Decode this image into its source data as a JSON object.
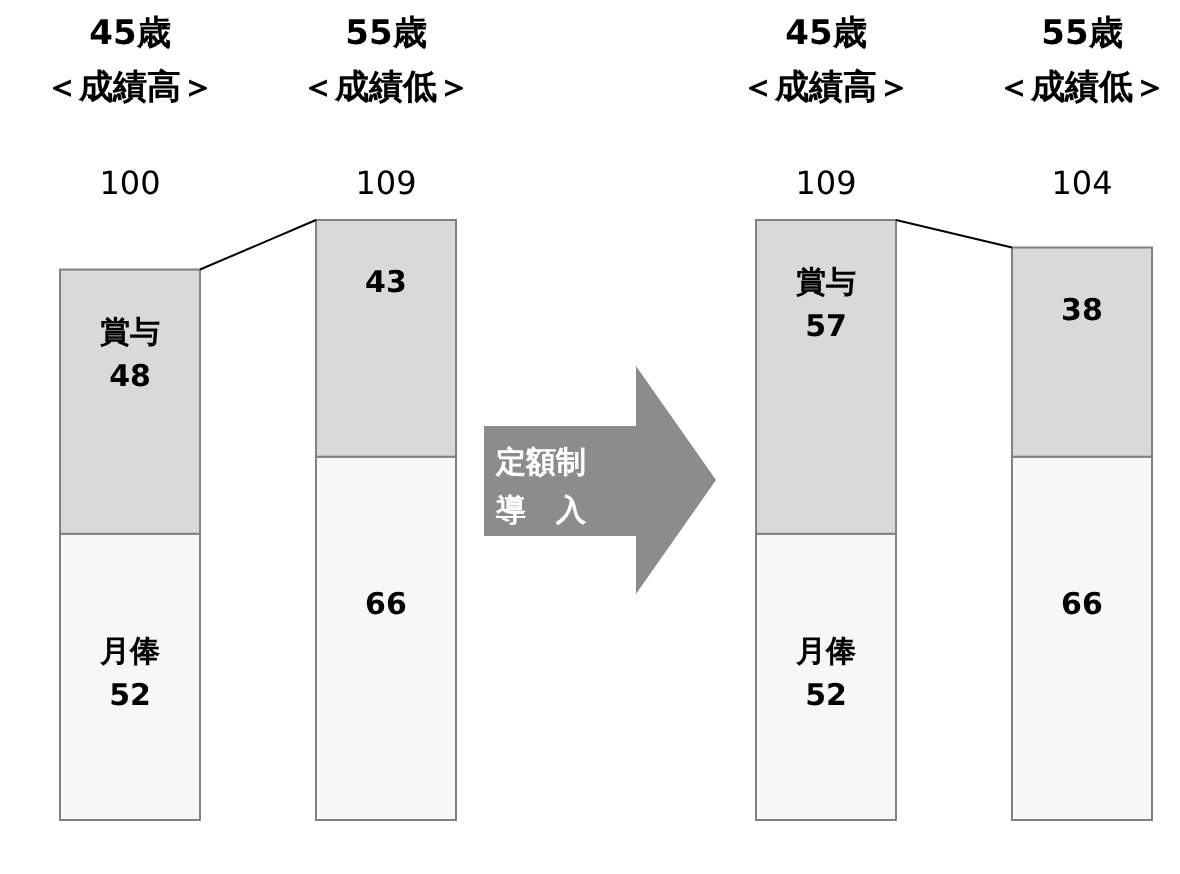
{
  "chart_data": [
    {
      "type": "bar",
      "stacked": true,
      "categories": [
        "45歳＜成績高＞",
        "55歳＜成績低＞"
      ],
      "series": [
        {
          "name": "月俸",
          "color": "#f7f7f7",
          "values": [
            52,
            66
          ],
          "value_labels": [
            "52",
            "66"
          ]
        },
        {
          "name": "賞与",
          "color": "#d9d9d9",
          "values": [
            48,
            43
          ],
          "value_labels": [
            "48",
            "43"
          ]
        }
      ],
      "totals": [
        "100",
        "109"
      ],
      "annotations": [
        "定額制導　入"
      ]
    },
    {
      "type": "bar",
      "stacked": true,
      "categories": [
        "45歳＜成績高＞",
        "55歳＜成績低＞"
      ],
      "series": [
        {
          "name": "月俸",
          "color": "#f7f7f7",
          "values": [
            52,
            66
          ],
          "value_labels": [
            "52",
            "66"
          ]
        },
        {
          "name": "賞与",
          "color": "#d9d9d9",
          "values": [
            57,
            38
          ],
          "value_labels": [
            "57",
            "38"
          ]
        }
      ],
      "totals": [
        "109",
        "104"
      ]
    }
  ]
}
